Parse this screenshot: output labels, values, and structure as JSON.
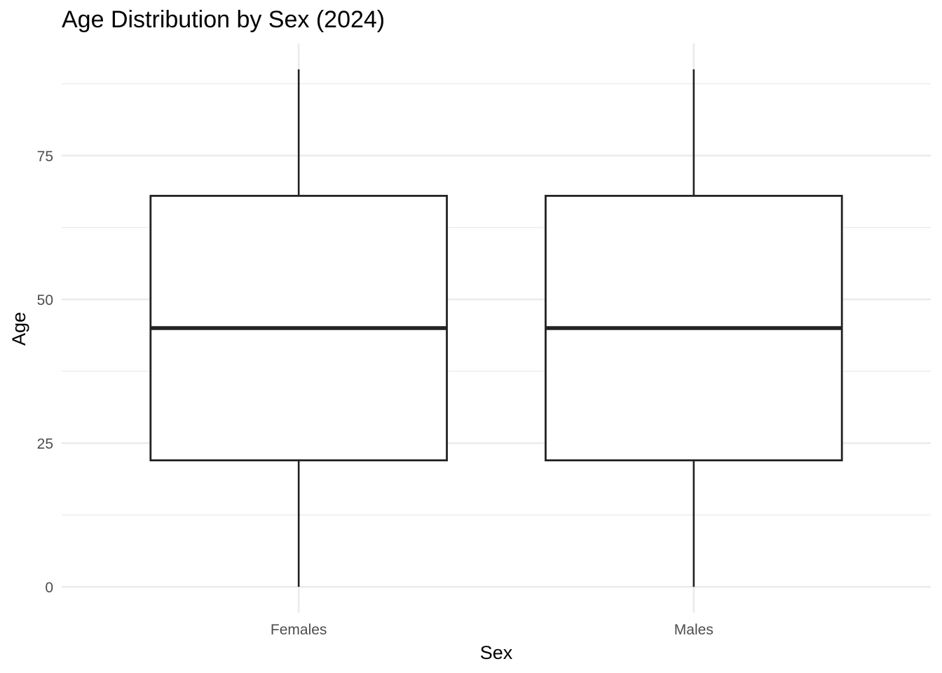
{
  "chart_data": {
    "type": "boxplot",
    "title": "Age Distribution by Sex (2024)",
    "xlabel": "Sex",
    "ylabel": "Age",
    "categories": [
      "Females",
      "Males"
    ],
    "boxes": [
      {
        "category": "Females",
        "min": 0,
        "q1": 22,
        "median": 45,
        "q3": 68,
        "max": 90
      },
      {
        "category": "Males",
        "min": 0,
        "q1": 22,
        "median": 45,
        "q3": 68,
        "max": 90
      }
    ],
    "y_ticks": [
      0,
      25,
      50,
      75
    ],
    "y_minor_ticks": [
      12.5,
      37.5,
      62.5,
      87.5
    ],
    "ylim": [
      -4.5,
      94.5
    ],
    "grid": true,
    "legend": "none",
    "colors": {
      "box_fill": "#ffffff",
      "box_stroke": "#222222",
      "grid": "#ebebeb",
      "tick_text": "#4d4d4d"
    }
  }
}
